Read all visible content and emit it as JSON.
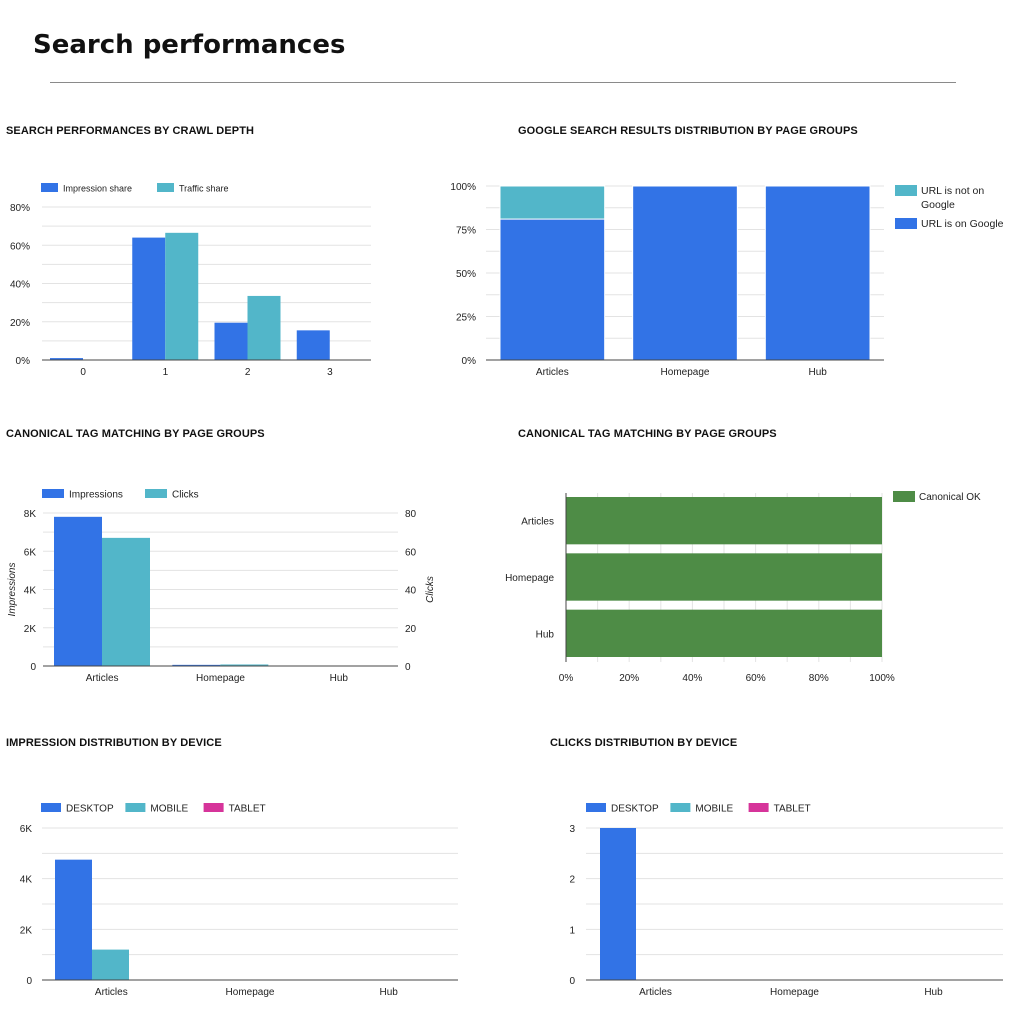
{
  "page": {
    "title": "Search performances"
  },
  "colors": {
    "blue": "#3273e6",
    "teal": "#52b6c9",
    "pink": "#d6349a",
    "green": "#4e8c46",
    "grid": "#e3e3e3",
    "axis": "#444444",
    "text": "#222222"
  },
  "chart_data": [
    {
      "id": "crawl",
      "type": "bar",
      "title": "SEARCH PERFORMANCES BY CRAWL DEPTH",
      "categories": [
        "0",
        "1",
        "2",
        "3"
      ],
      "series": [
        {
          "name": "Impression share",
          "color": "#3273e6",
          "values": [
            1,
            64,
            19.5,
            15.5
          ]
        },
        {
          "name": "Traffic share",
          "color": "#52b6c9",
          "values": [
            0,
            66.5,
            33.5,
            0
          ]
        }
      ],
      "y_ticks": [
        "0%",
        "20%",
        "40%",
        "60%",
        "80%"
      ],
      "ylim": [
        0,
        80
      ],
      "legend": "top-left"
    },
    {
      "id": "google",
      "type": "bar",
      "stacked": true,
      "title": "GOOGLE SEARCH RESULTS DISTRIBUTION BY PAGE GROUPS",
      "categories": [
        "Articles",
        "Homepage",
        "Hub"
      ],
      "series": [
        {
          "name": "URL is on Google",
          "color": "#3273e6",
          "values": [
            81,
            100,
            100
          ]
        },
        {
          "name": "URL is not on Google",
          "color": "#52b6c9",
          "values": [
            19,
            0,
            0
          ]
        }
      ],
      "legend_items": [
        {
          "lines": [
            "URL is not on",
            "Google"
          ],
          "color": "#52b6c9"
        },
        {
          "lines": [
            "URL is on Google"
          ],
          "color": "#3273e6"
        }
      ],
      "y_ticks": [
        "0%",
        "25%",
        "50%",
        "75%",
        "100%"
      ],
      "ylim": [
        0,
        100
      ],
      "legend": "right"
    },
    {
      "id": "canonical_dual",
      "type": "bar",
      "title": "CANONICAL TAG MATCHING BY PAGE GROUPS",
      "categories": [
        "Articles",
        "Homepage",
        "Hub"
      ],
      "series": [
        {
          "name": "Impressions",
          "axis": "left",
          "color": "#3273e6",
          "values": [
            7800,
            60,
            0
          ]
        },
        {
          "name": "Clicks",
          "axis": "right",
          "color": "#52b6c9",
          "values": [
            67,
            0.8,
            0
          ]
        }
      ],
      "y_ticks": [
        "0",
        "2K",
        "4K",
        "6K",
        "8K"
      ],
      "ylim": [
        0,
        8000
      ],
      "y2_ticks": [
        "0",
        "20",
        "40",
        "60",
        "80"
      ],
      "y2lim": [
        0,
        80
      ],
      "ylabel": "Impressions",
      "y2label": "Clicks",
      "legend": "top-left"
    },
    {
      "id": "canonical_ok",
      "type": "bar",
      "orientation": "horizontal",
      "title": "CANONICAL TAG MATCHING BY PAGE GROUPS",
      "categories": [
        "Articles",
        "Homepage",
        "Hub"
      ],
      "series": [
        {
          "name": "Canonical OK",
          "color": "#4e8c46",
          "values": [
            100,
            100,
            100
          ]
        }
      ],
      "x_ticks": [
        "0%",
        "20%",
        "40%",
        "60%",
        "80%",
        "100%"
      ],
      "xlim": [
        0,
        100
      ],
      "legend": "right"
    },
    {
      "id": "impr_device",
      "type": "bar",
      "title": "IMPRESSION DISTRIBUTION BY DEVICE",
      "categories": [
        "Articles",
        "Homepage",
        "Hub"
      ],
      "series": [
        {
          "name": "DESKTOP",
          "color": "#3273e6",
          "values": [
            4750,
            0,
            0
          ]
        },
        {
          "name": "MOBILE",
          "color": "#52b6c9",
          "values": [
            1200,
            0,
            0
          ]
        },
        {
          "name": "TABLET",
          "color": "#d6349a",
          "values": [
            0,
            0,
            0
          ]
        }
      ],
      "y_ticks": [
        "0",
        "2K",
        "4K",
        "6K"
      ],
      "ylim": [
        0,
        6000
      ],
      "legend": "top-left"
    },
    {
      "id": "clicks_device",
      "type": "bar",
      "title": "CLICKS DISTRIBUTION BY DEVICE",
      "categories": [
        "Articles",
        "Homepage",
        "Hub"
      ],
      "series": [
        {
          "name": "DESKTOP",
          "color": "#3273e6",
          "values": [
            3,
            0,
            0
          ]
        },
        {
          "name": "MOBILE",
          "color": "#52b6c9",
          "values": [
            0,
            0,
            0
          ]
        },
        {
          "name": "TABLET",
          "color": "#d6349a",
          "values": [
            0,
            0,
            0
          ]
        }
      ],
      "y_ticks": [
        "0",
        "1",
        "2",
        "3"
      ],
      "ylim": [
        0,
        3
      ],
      "legend": "top-left"
    }
  ]
}
